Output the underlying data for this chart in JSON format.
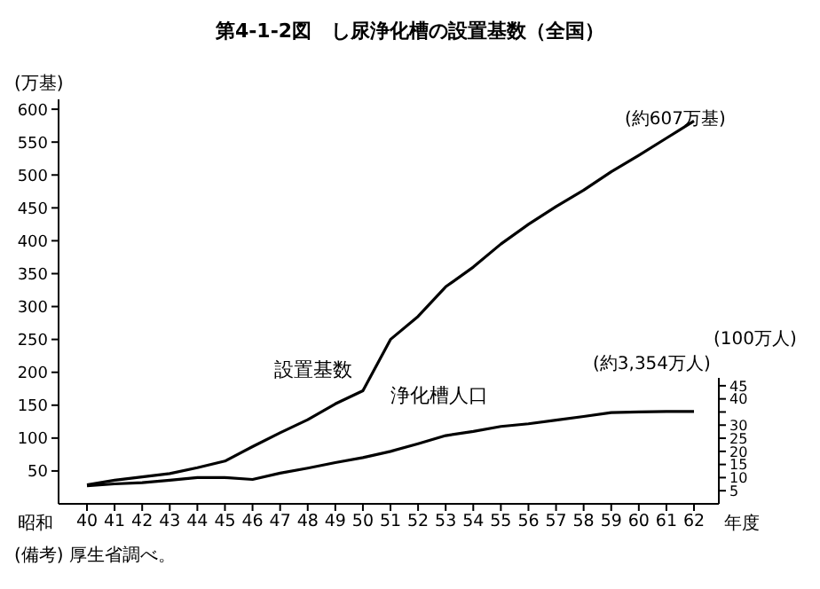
{
  "chart_data": {
    "type": "line",
    "title": "第4-1-2図　し尿浄化槽の設置基数（全国）",
    "xlabel": "年度",
    "ylabel": "(万基)",
    "y2label": "(100万人)",
    "categories": [
      "40",
      "41",
      "42",
      "43",
      "44",
      "45",
      "46",
      "47",
      "48",
      "49",
      "50",
      "51",
      "52",
      "53",
      "54",
      "55",
      "56",
      "57",
      "58",
      "59",
      "60",
      "61",
      "62"
    ],
    "series": [
      {
        "name": "設置基数",
        "color": "#000000",
        "values": [
          29,
          36,
          41,
          46,
          55,
          65,
          87,
          108,
          128,
          152,
          172,
          250,
          285,
          330,
          360,
          395,
          425,
          452,
          477,
          505,
          530,
          556,
          582
        ]
      },
      {
        "name": "浄化槽人口",
        "color": "#000000",
        "axis": "y2",
        "values": [
          6.9,
          7.6,
          8.1,
          9,
          10,
          10,
          9.3,
          11.7,
          13.6,
          15.7,
          17.6,
          20,
          22.9,
          26,
          27.6,
          29.5,
          30.5,
          31.9,
          33.3,
          34.8,
          35,
          35.2,
          35.2
        ]
      }
    ],
    "ylim": [
      0,
      615
    ],
    "yticks": [
      50,
      100,
      150,
      200,
      250,
      300,
      350,
      400,
      450,
      500,
      550,
      600
    ],
    "y2lim": [
      0,
      48
    ],
    "y2ticks": [
      5,
      10,
      15,
      20,
      25,
      30,
      {
        "value": 35,
        "label": null
      },
      40,
      45
    ],
    "annotations": [
      "(約607万基)",
      "(約3,354万人)",
      "昭和",
      "(備考) 厚生省調べ。"
    ]
  }
}
